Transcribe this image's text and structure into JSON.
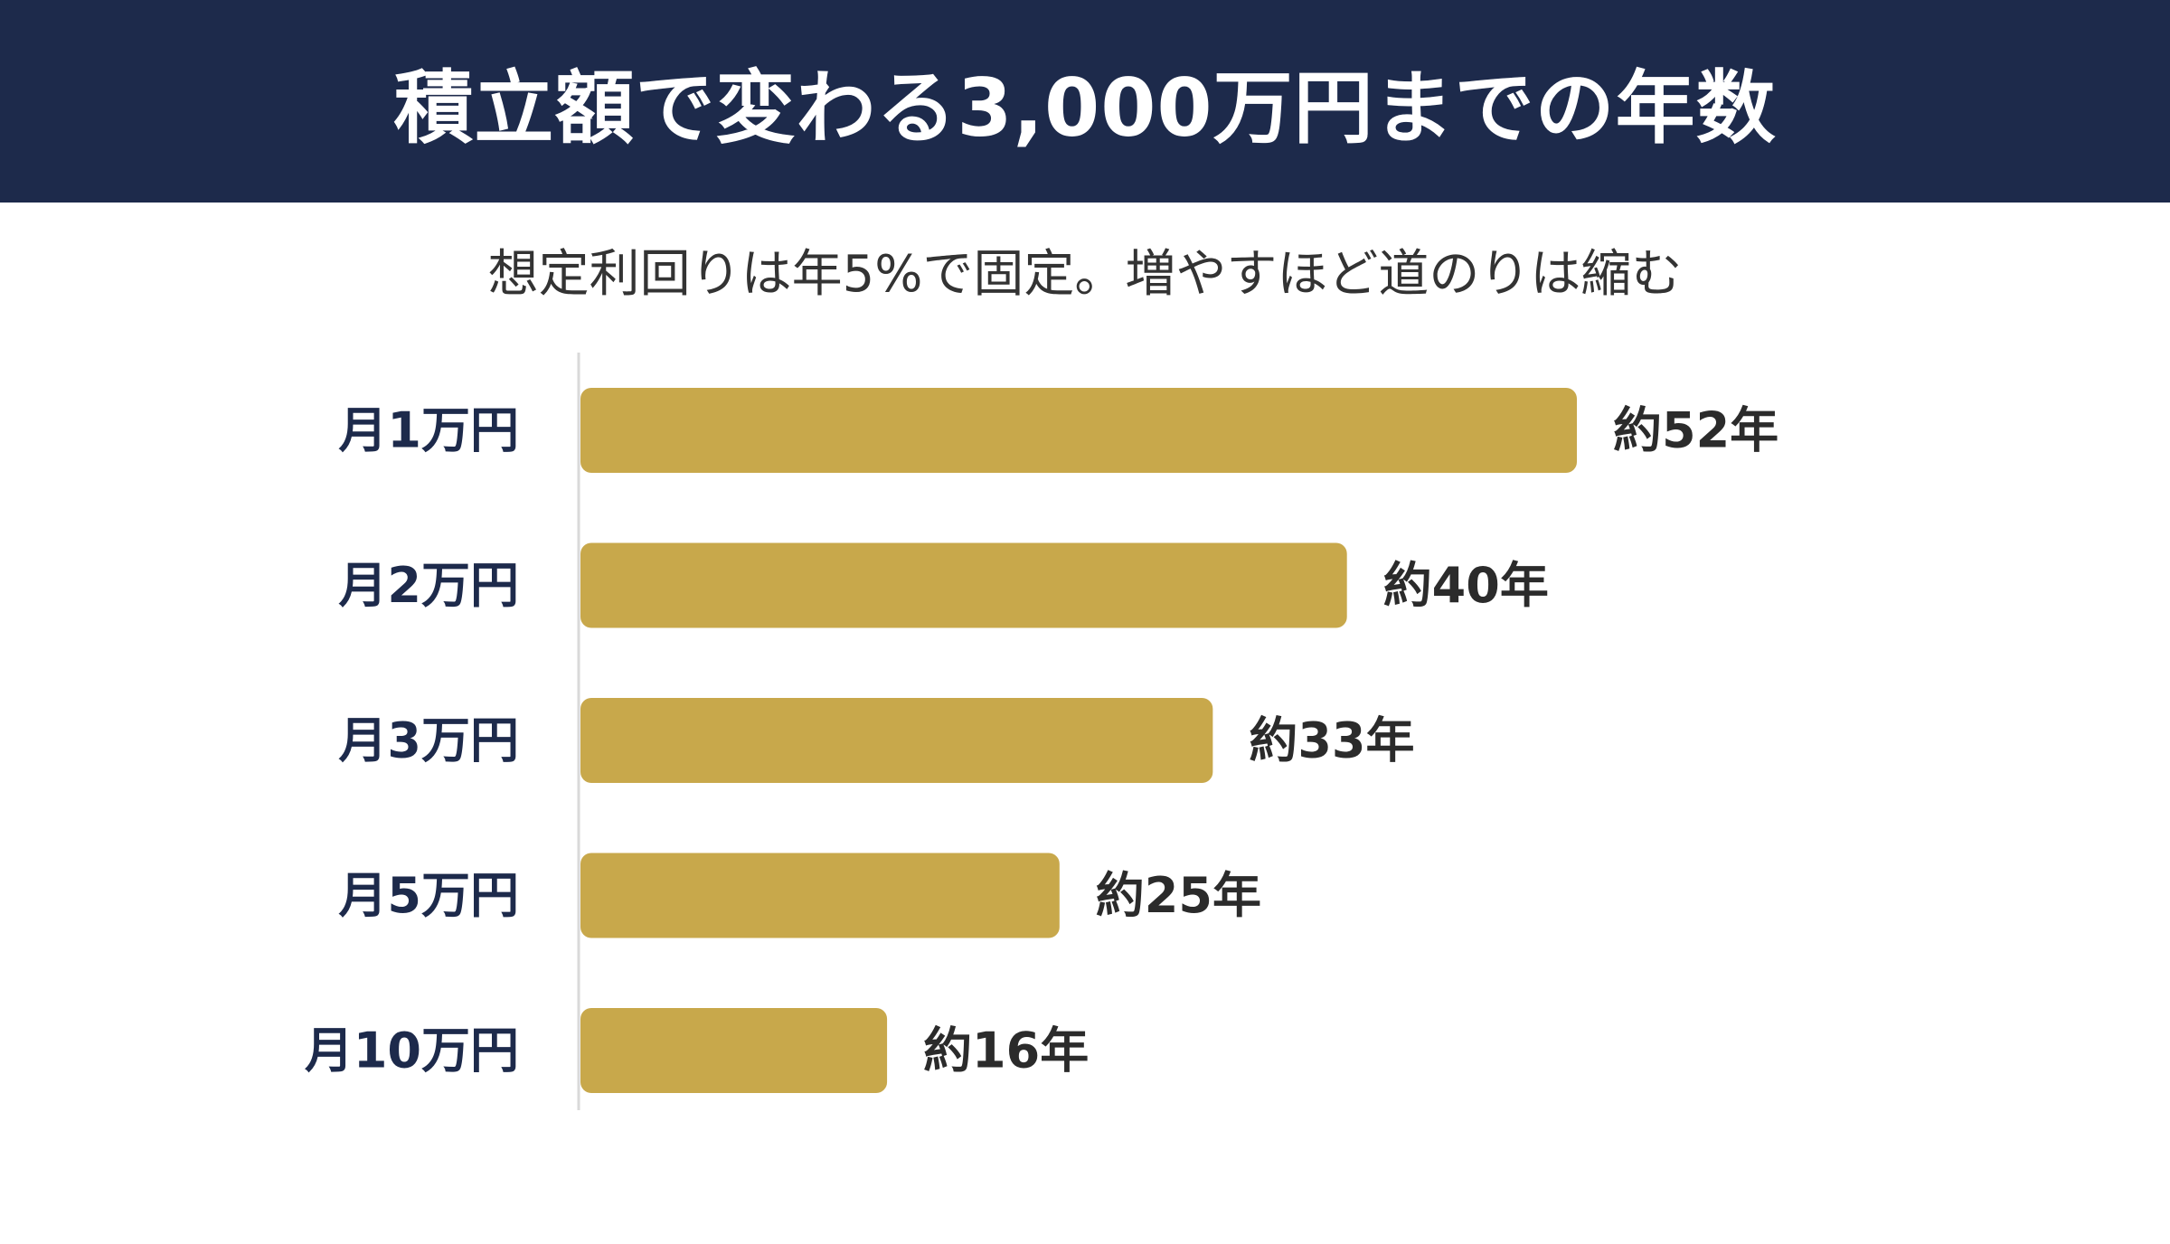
{
  "colors": {
    "header_bg": "#1d2a4b",
    "bar": "#c8a84b",
    "category_text": "#1d2a4b",
    "value_text": "#2b2b2b",
    "axis": "#d9d9d9"
  },
  "chart_data": {
    "type": "bar",
    "orientation": "horizontal",
    "title": "積立額で変わる3,000万円までの年数",
    "subtitle": "想定利回りは年5%で固定。増やすほど道のりは縮む",
    "categories": [
      "月1万円",
      "月2万円",
      "月3万円",
      "月5万円",
      "月10万円"
    ],
    "values": [
      52,
      40,
      33,
      25,
      16
    ],
    "value_labels": [
      "約52年",
      "約40年",
      "約33年",
      "約25年",
      "約16年"
    ],
    "grid": false,
    "legend": "none"
  }
}
